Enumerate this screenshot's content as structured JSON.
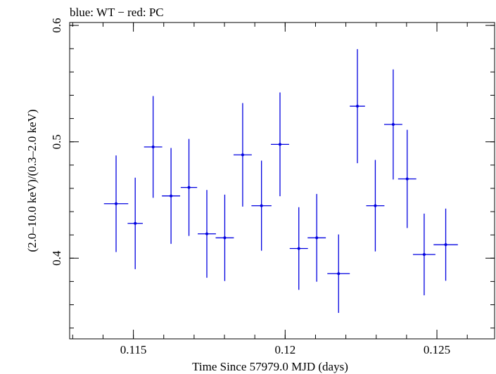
{
  "chart_data": {
    "type": "scatter",
    "title": "blue: WT − red: PC",
    "xlabel": "Time Since 57979.0 MJD (days)",
    "ylabel": "(2.0–10.0 keV)/(0.3–2.0 keV)",
    "xlim": [
      0.1129,
      0.1269
    ],
    "ylim": [
      0.3307,
      0.6025
    ],
    "x_ticks": [
      {
        "value": 0.115,
        "label": "0.115"
      },
      {
        "value": 0.12,
        "label": "0.12"
      },
      {
        "value": 0.125,
        "label": "0.125"
      }
    ],
    "y_ticks": [
      {
        "value": 0.4,
        "label": "0.4"
      },
      {
        "value": 0.5,
        "label": "0.5"
      },
      {
        "value": 0.6,
        "label": "0.6"
      }
    ],
    "x_minor_step": 0.001,
    "y_minor_step": 0.02,
    "color": "#0000e0",
    "series": [
      {
        "points": [
          {
            "x": 0.11443,
            "xerr": 0.0004,
            "y": 0.4468,
            "yerr": 0.0415
          },
          {
            "x": 0.11506,
            "xerr": 0.00025,
            "y": 0.4299,
            "yerr": 0.0393
          },
          {
            "x": 0.11565,
            "xerr": 0.0003,
            "y": 0.4956,
            "yerr": 0.0437
          },
          {
            "x": 0.11624,
            "xerr": 0.0003,
            "y": 0.4535,
            "yerr": 0.0412
          },
          {
            "x": 0.11683,
            "xerr": 0.00027,
            "y": 0.4608,
            "yerr": 0.0417
          },
          {
            "x": 0.11742,
            "xerr": 0.0003,
            "y": 0.4209,
            "yerr": 0.0377
          },
          {
            "x": 0.11801,
            "xerr": 0.0003,
            "y": 0.4175,
            "yerr": 0.0371
          },
          {
            "x": 0.1186,
            "xerr": 0.0003,
            "y": 0.4888,
            "yerr": 0.0445
          },
          {
            "x": 0.11922,
            "xerr": 0.00033,
            "y": 0.4451,
            "yerr": 0.0387
          },
          {
            "x": 0.11983,
            "xerr": 0.0003,
            "y": 0.4978,
            "yerr": 0.0446
          },
          {
            "x": 0.12045,
            "xerr": 0.0003,
            "y": 0.4083,
            "yerr": 0.0355
          },
          {
            "x": 0.12104,
            "xerr": 0.0003,
            "y": 0.4175,
            "yerr": 0.0377
          },
          {
            "x": 0.12176,
            "xerr": 0.00037,
            "y": 0.3867,
            "yerr": 0.0337
          },
          {
            "x": 0.12238,
            "xerr": 0.00025,
            "y": 0.5306,
            "yerr": 0.049
          },
          {
            "x": 0.12297,
            "xerr": 0.0003,
            "y": 0.4451,
            "yerr": 0.0393
          },
          {
            "x": 0.12356,
            "xerr": 0.0003,
            "y": 0.5149,
            "yerr": 0.0473
          },
          {
            "x": 0.12402,
            "xerr": 0.0003,
            "y": 0.4681,
            "yerr": 0.0422
          },
          {
            "x": 0.12458,
            "xerr": 0.00037,
            "y": 0.4032,
            "yerr": 0.0351
          },
          {
            "x": 0.12529,
            "xerr": 0.0004,
            "y": 0.4116,
            "yerr": 0.031
          }
        ]
      }
    ]
  }
}
